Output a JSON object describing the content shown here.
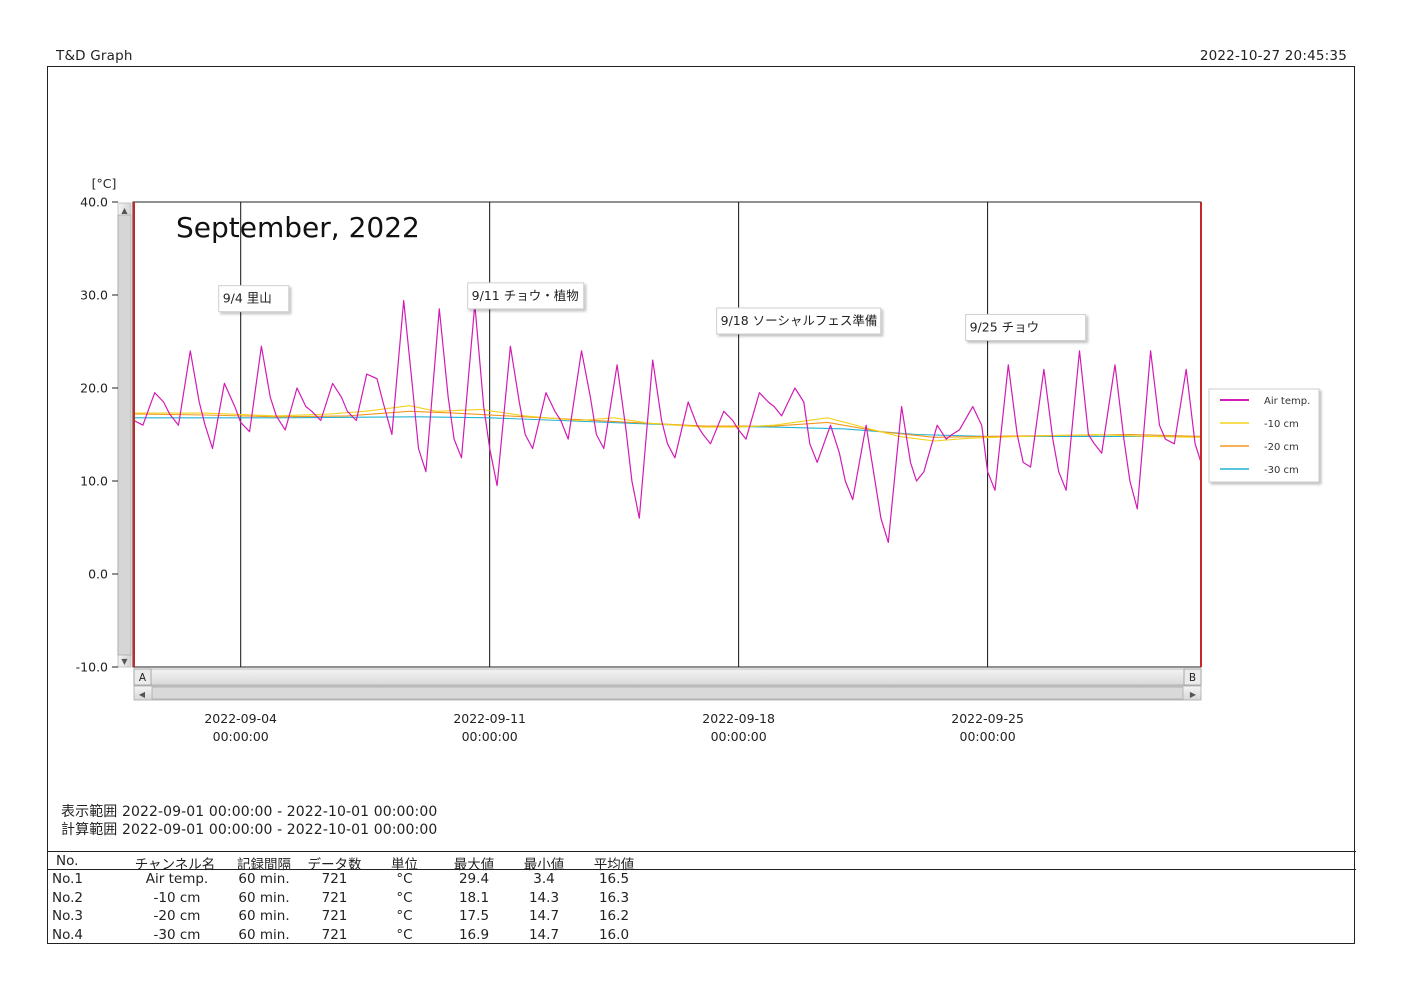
{
  "app_title": "T&D Graph",
  "print_timestamp": "2022-10-27 20:45:35",
  "chart_data": {
    "type": "line",
    "title": "September, 2022",
    "ylabel": "[°C]",
    "ylim": [
      -10,
      40
    ],
    "yticks": [
      "40.0",
      "30.0",
      "20.0",
      "10.0",
      "0.0",
      "-10.0"
    ],
    "ytick_values": [
      40,
      30,
      20,
      10,
      0,
      -10
    ],
    "xlim": [
      "2022-09-01 00:00:00",
      "2022-10-01 00:00:00"
    ],
    "xticks": [
      {
        "x": "2022-09-04 00:00:00",
        "date": "2022-09-04",
        "time": "00:00:00"
      },
      {
        "x": "2022-09-11 00:00:00",
        "date": "2022-09-11",
        "time": "00:00:00"
      },
      {
        "x": "2022-09-18 00:00:00",
        "date": "2022-09-18",
        "time": "00:00:00"
      },
      {
        "x": "2022-09-25 00:00:00",
        "date": "2022-09-25",
        "time": "00:00:00"
      }
    ],
    "cursor_a_label": "A",
    "cursor_b_label": "B",
    "annotations": [
      {
        "text": "9/4 里山",
        "x": "2022-09-04 00:00:00",
        "y": 29.5
      },
      {
        "text": "9/11 チョウ・植物",
        "x": "2022-09-11 00:00:00",
        "y": 29.8
      },
      {
        "text": "9/18 ソーシャルフェス準備",
        "x": "2022-09-18 00:00:00",
        "y": 27.1
      },
      {
        "text": "9/25 チョウ",
        "x": "2022-09-25 00:00:00",
        "y": 26.4
      }
    ],
    "legend_position": "right",
    "series": [
      {
        "name": "Air temp.",
        "color": "#d21bb4",
        "points": [
          [
            "2022-09-01 00:00",
            16.5
          ],
          [
            "2022-09-01 06:00",
            16.0
          ],
          [
            "2022-09-01 14:00",
            19.5
          ],
          [
            "2022-09-01 20:00",
            18.5
          ],
          [
            "2022-09-02 00:00",
            17.2
          ],
          [
            "2022-09-02 06:00",
            16.0
          ],
          [
            "2022-09-02 14:00",
            24.0
          ],
          [
            "2022-09-02 20:00",
            18.5
          ],
          [
            "2022-09-03 00:00",
            16.0
          ],
          [
            "2022-09-03 05:00",
            13.5
          ],
          [
            "2022-09-03 13:00",
            20.5
          ],
          [
            "2022-09-03 20:00",
            18.0
          ],
          [
            "2022-09-04 00:00",
            16.3
          ],
          [
            "2022-09-04 06:00",
            15.3
          ],
          [
            "2022-09-04 14:00",
            24.5
          ],
          [
            "2022-09-04 20:00",
            19.0
          ],
          [
            "2022-09-05 00:00",
            17.0
          ],
          [
            "2022-09-05 06:00",
            15.5
          ],
          [
            "2022-09-05 14:00",
            20.0
          ],
          [
            "2022-09-05 20:00",
            18.0
          ],
          [
            "2022-09-06 00:00",
            17.5
          ],
          [
            "2022-09-06 06:00",
            16.5
          ],
          [
            "2022-09-06 14:00",
            20.5
          ],
          [
            "2022-09-06 20:00",
            19.0
          ],
          [
            "2022-09-07 00:00",
            17.5
          ],
          [
            "2022-09-07 06:00",
            16.5
          ],
          [
            "2022-09-07 13:00",
            21.5
          ],
          [
            "2022-09-07 20:00",
            21.0
          ],
          [
            "2022-09-08 00:00",
            18.5
          ],
          [
            "2022-09-08 06:00",
            15.0
          ],
          [
            "2022-09-08 14:00",
            29.4
          ],
          [
            "2022-09-08 20:00",
            20.0
          ],
          [
            "2022-09-09 00:00",
            13.5
          ],
          [
            "2022-09-09 05:00",
            11.0
          ],
          [
            "2022-09-09 14:00",
            28.5
          ],
          [
            "2022-09-09 20:00",
            19.0
          ],
          [
            "2022-09-10 00:00",
            14.5
          ],
          [
            "2022-09-10 05:00",
            12.5
          ],
          [
            "2022-09-10 14:00",
            29.0
          ],
          [
            "2022-09-10 20:00",
            18.0
          ],
          [
            "2022-09-11 00:00",
            13.5
          ],
          [
            "2022-09-11 05:00",
            9.5
          ],
          [
            "2022-09-11 14:00",
            24.5
          ],
          [
            "2022-09-11 20:00",
            18.5
          ],
          [
            "2022-09-12 00:00",
            15.0
          ],
          [
            "2022-09-12 05:00",
            13.5
          ],
          [
            "2022-09-12 14:00",
            19.5
          ],
          [
            "2022-09-12 20:00",
            17.5
          ],
          [
            "2022-09-13 00:00",
            16.5
          ],
          [
            "2022-09-13 05:00",
            14.5
          ],
          [
            "2022-09-13 14:00",
            24.0
          ],
          [
            "2022-09-13 20:00",
            19.0
          ],
          [
            "2022-09-14 00:00",
            15.0
          ],
          [
            "2022-09-14 05:00",
            13.5
          ],
          [
            "2022-09-14 14:00",
            22.5
          ],
          [
            "2022-09-14 20:00",
            15.5
          ],
          [
            "2022-09-15 00:00",
            10.0
          ],
          [
            "2022-09-15 05:00",
            6.0
          ],
          [
            "2022-09-15 14:00",
            23.0
          ],
          [
            "2022-09-15 20:00",
            16.5
          ],
          [
            "2022-09-16 00:00",
            14.0
          ],
          [
            "2022-09-16 05:00",
            12.5
          ],
          [
            "2022-09-16 14:00",
            18.5
          ],
          [
            "2022-09-16 20:00",
            16.0
          ],
          [
            "2022-09-17 00:00",
            15.0
          ],
          [
            "2022-09-17 05:00",
            14.0
          ],
          [
            "2022-09-17 14:00",
            17.5
          ],
          [
            "2022-09-17 20:00",
            16.5
          ],
          [
            "2022-09-18 00:00",
            15.5
          ],
          [
            "2022-09-18 05:00",
            14.5
          ],
          [
            "2022-09-18 14:00",
            19.5
          ],
          [
            "2022-09-18 20:00",
            18.5
          ],
          [
            "2022-09-19 00:00",
            18.0
          ],
          [
            "2022-09-19 05:00",
            17.0
          ],
          [
            "2022-09-19 14:00",
            20.0
          ],
          [
            "2022-09-19 20:00",
            18.5
          ],
          [
            "2022-09-20 00:00",
            14.0
          ],
          [
            "2022-09-20 05:00",
            12.0
          ],
          [
            "2022-09-20 14:00",
            16.0
          ],
          [
            "2022-09-20 20:00",
            13.0
          ],
          [
            "2022-09-21 00:00",
            10.0
          ],
          [
            "2022-09-21 05:00",
            8.0
          ],
          [
            "2022-09-21 14:00",
            16.0
          ],
          [
            "2022-09-21 20:00",
            10.0
          ],
          [
            "2022-09-22 00:00",
            6.0
          ],
          [
            "2022-09-22 05:00",
            3.4
          ],
          [
            "2022-09-22 14:00",
            18.0
          ],
          [
            "2022-09-22 20:00",
            12.0
          ],
          [
            "2022-09-23 00:00",
            10.0
          ],
          [
            "2022-09-23 05:00",
            11.0
          ],
          [
            "2022-09-23 14:00",
            16.0
          ],
          [
            "2022-09-23 20:00",
            14.5
          ],
          [
            "2022-09-24 00:00",
            15.0
          ],
          [
            "2022-09-24 05:00",
            15.5
          ],
          [
            "2022-09-24 14:00",
            18.0
          ],
          [
            "2022-09-24 20:00",
            16.0
          ],
          [
            "2022-09-25 00:00",
            11.0
          ],
          [
            "2022-09-25 05:00",
            9.0
          ],
          [
            "2022-09-25 14:00",
            22.5
          ],
          [
            "2022-09-25 20:00",
            15.0
          ],
          [
            "2022-09-26 00:00",
            12.0
          ],
          [
            "2022-09-26 05:00",
            11.5
          ],
          [
            "2022-09-26 14:00",
            22.0
          ],
          [
            "2022-09-26 20:00",
            14.5
          ],
          [
            "2022-09-27 00:00",
            11.0
          ],
          [
            "2022-09-27 05:00",
            9.0
          ],
          [
            "2022-09-27 14:00",
            24.0
          ],
          [
            "2022-09-27 20:00",
            15.0
          ],
          [
            "2022-09-28 00:00",
            14.0
          ],
          [
            "2022-09-28 05:00",
            13.0
          ],
          [
            "2022-09-28 14:00",
            22.5
          ],
          [
            "2022-09-28 20:00",
            14.5
          ],
          [
            "2022-09-29 00:00",
            10.0
          ],
          [
            "2022-09-29 05:00",
            7.0
          ],
          [
            "2022-09-29 14:00",
            24.0
          ],
          [
            "2022-09-29 20:00",
            16.0
          ],
          [
            "2022-09-30 00:00",
            14.5
          ],
          [
            "2022-09-30 06:00",
            14.0
          ],
          [
            "2022-09-30 14:00",
            22.0
          ],
          [
            "2022-09-30 20:00",
            14.0
          ],
          [
            "2022-10-01 00:00",
            12.0
          ]
        ]
      },
      {
        "name": "-10 cm",
        "color": "#f2d21d",
        "points": [
          [
            "2022-09-01 00:00",
            17.3
          ],
          [
            "2022-09-03 00:00",
            17.3
          ],
          [
            "2022-09-05 00:00",
            17.0
          ],
          [
            "2022-09-06 12:00",
            17.2
          ],
          [
            "2022-09-07 12:00",
            17.5
          ],
          [
            "2022-09-08 18:00",
            18.1
          ],
          [
            "2022-09-09 12:00",
            17.5
          ],
          [
            "2022-09-10 18:00",
            17.7
          ],
          [
            "2022-09-12 00:00",
            17.0
          ],
          [
            "2022-09-13 12:00",
            16.5
          ],
          [
            "2022-09-14 12:00",
            16.8
          ],
          [
            "2022-09-15 12:00",
            16.2
          ],
          [
            "2022-09-17 00:00",
            15.8
          ],
          [
            "2022-09-18 00:00",
            15.8
          ],
          [
            "2022-09-19 00:00",
            16.0
          ],
          [
            "2022-09-20 12:00",
            16.8
          ],
          [
            "2022-09-21 12:00",
            15.8
          ],
          [
            "2022-09-22 12:00",
            14.8
          ],
          [
            "2022-09-23 12:00",
            14.3
          ],
          [
            "2022-09-24 12:00",
            14.6
          ],
          [
            "2022-09-26 00:00",
            14.8
          ],
          [
            "2022-09-28 00:00",
            15.0
          ],
          [
            "2022-09-29 12:00",
            14.8
          ],
          [
            "2022-10-01 00:00",
            14.7
          ]
        ]
      },
      {
        "name": "-20 cm",
        "color": "#f3981e",
        "points": [
          [
            "2022-09-01 00:00",
            17.2
          ],
          [
            "2022-09-03 00:00",
            17.1
          ],
          [
            "2022-09-05 00:00",
            16.9
          ],
          [
            "2022-09-07 00:00",
            17.0
          ],
          [
            "2022-09-08 18:00",
            17.5
          ],
          [
            "2022-09-10 00:00",
            17.3
          ],
          [
            "2022-09-11 12:00",
            17.0
          ],
          [
            "2022-09-13 00:00",
            16.7
          ],
          [
            "2022-09-15 00:00",
            16.3
          ],
          [
            "2022-09-17 00:00",
            15.9
          ],
          [
            "2022-09-19 00:00",
            15.9
          ],
          [
            "2022-09-20 12:00",
            16.3
          ],
          [
            "2022-09-22 00:00",
            15.3
          ],
          [
            "2022-09-23 12:00",
            14.7
          ],
          [
            "2022-09-25 00:00",
            14.8
          ],
          [
            "2022-09-27 00:00",
            14.9
          ],
          [
            "2022-09-29 00:00",
            15.0
          ],
          [
            "2022-10-01 00:00",
            14.8
          ]
        ]
      },
      {
        "name": "-30 cm",
        "color": "#22b4d2",
        "points": [
          [
            "2022-09-01 00:00",
            16.8
          ],
          [
            "2022-09-05 00:00",
            16.8
          ],
          [
            "2022-09-09 00:00",
            16.9
          ],
          [
            "2022-09-11 00:00",
            16.8
          ],
          [
            "2022-09-13 00:00",
            16.5
          ],
          [
            "2022-09-15 00:00",
            16.2
          ],
          [
            "2022-09-17 00:00",
            15.9
          ],
          [
            "2022-09-19 00:00",
            15.8
          ],
          [
            "2022-09-21 00:00",
            15.6
          ],
          [
            "2022-09-23 00:00",
            15.0
          ],
          [
            "2022-09-25 00:00",
            14.8
          ],
          [
            "2022-09-27 00:00",
            14.8
          ],
          [
            "2022-10-01 00:00",
            14.8
          ]
        ]
      }
    ]
  },
  "display_range": "表示範囲 2022-09-01 00:00:00 - 2022-10-01 00:00:00",
  "calc_range": "計算範囲 2022-09-01 00:00:00 - 2022-10-01 00:00:00",
  "stats_table": {
    "headers": [
      "No.",
      "チャンネル名",
      "記録間隔",
      "データ数",
      "単位",
      "最大値",
      "最小値",
      "平均値"
    ],
    "rows": [
      [
        "No.1",
        "Air temp.",
        "60 min.",
        "721",
        "°C",
        "29.4",
        "3.4",
        "16.5"
      ],
      [
        "No.2",
        "-10 cm",
        "60 min.",
        "721",
        "°C",
        "18.1",
        "14.3",
        "16.3"
      ],
      [
        "No.3",
        "-20 cm",
        "60 min.",
        "721",
        "°C",
        "17.5",
        "14.7",
        "16.2"
      ],
      [
        "No.4",
        "-30 cm",
        "60 min.",
        "721",
        "°C",
        "16.9",
        "14.7",
        "16.0"
      ]
    ]
  }
}
